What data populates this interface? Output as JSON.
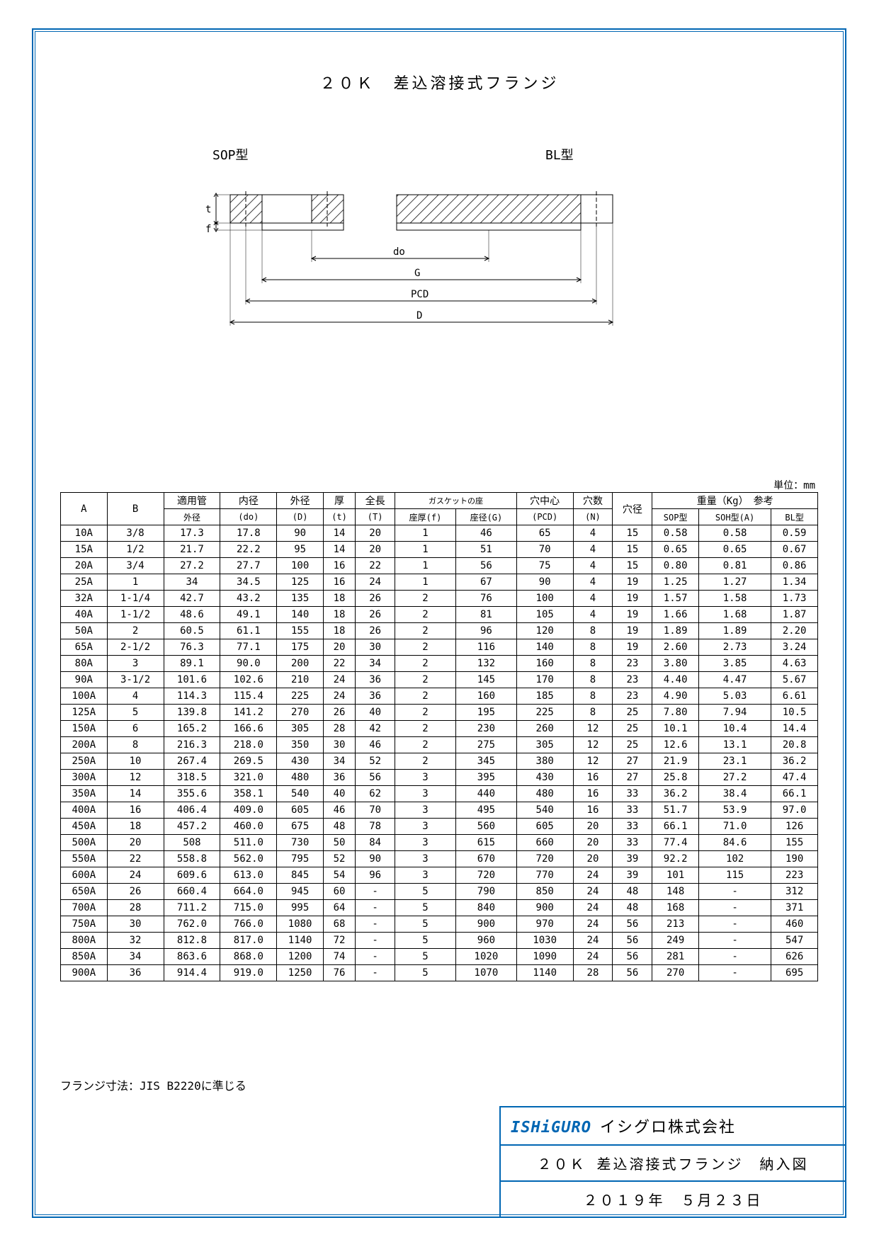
{
  "page": {
    "title": "２０Ｋ　差込溶接式フランジ",
    "sop_label": "SOP型",
    "bl_label": "BL型",
    "unit": "単位：mm",
    "footnote": "フランジ寸法：JIS B2220に準じる",
    "diagram_labels": {
      "t": "t",
      "f": "f",
      "do": "do",
      "G": "G",
      "PCD": "PCD",
      "D": "D"
    }
  },
  "table": {
    "header_row1": [
      "A",
      "B",
      "適用管",
      "内径",
      "外径",
      "厚",
      "全長",
      "ガスケットの座",
      "穴中心",
      "穴数",
      "穴径",
      "重量（Kg）　参考"
    ],
    "header_row2": [
      "",
      "",
      "外径",
      "(do)",
      "(D)",
      "(t)",
      "(T)",
      "座厚(f)",
      "座径(G)",
      "(PCD)",
      "(N)",
      "",
      "SOP型",
      "SOH型(A)",
      "BL型"
    ],
    "header_gasket_colspan": 2,
    "header_weight_colspan": 3,
    "rows": [
      [
        "10A",
        "3/8",
        "17.3",
        "17.8",
        "90",
        "14",
        "20",
        "1",
        "46",
        "65",
        "4",
        "15",
        "0.58",
        "0.58",
        "0.59"
      ],
      [
        "15A",
        "1/2",
        "21.7",
        "22.2",
        "95",
        "14",
        "20",
        "1",
        "51",
        "70",
        "4",
        "15",
        "0.65",
        "0.65",
        "0.67"
      ],
      [
        "20A",
        "3/4",
        "27.2",
        "27.7",
        "100",
        "16",
        "22",
        "1",
        "56",
        "75",
        "4",
        "15",
        "0.80",
        "0.81",
        "0.86"
      ],
      [
        "25A",
        "1",
        "34",
        "34.5",
        "125",
        "16",
        "24",
        "1",
        "67",
        "90",
        "4",
        "19",
        "1.25",
        "1.27",
        "1.34"
      ],
      [
        "32A",
        "1-1/4",
        "42.7",
        "43.2",
        "135",
        "18",
        "26",
        "2",
        "76",
        "100",
        "4",
        "19",
        "1.57",
        "1.58",
        "1.73"
      ],
      [
        "40A",
        "1-1/2",
        "48.6",
        "49.1",
        "140",
        "18",
        "26",
        "2",
        "81",
        "105",
        "4",
        "19",
        "1.66",
        "1.68",
        "1.87"
      ],
      [
        "50A",
        "2",
        "60.5",
        "61.1",
        "155",
        "18",
        "26",
        "2",
        "96",
        "120",
        "8",
        "19",
        "1.89",
        "1.89",
        "2.20"
      ],
      [
        "65A",
        "2-1/2",
        "76.3",
        "77.1",
        "175",
        "20",
        "30",
        "2",
        "116",
        "140",
        "8",
        "19",
        "2.60",
        "2.73",
        "3.24"
      ],
      [
        "80A",
        "3",
        "89.1",
        "90.0",
        "200",
        "22",
        "34",
        "2",
        "132",
        "160",
        "8",
        "23",
        "3.80",
        "3.85",
        "4.63"
      ],
      [
        "90A",
        "3-1/2",
        "101.6",
        "102.6",
        "210",
        "24",
        "36",
        "2",
        "145",
        "170",
        "8",
        "23",
        "4.40",
        "4.47",
        "5.67"
      ],
      [
        "100A",
        "4",
        "114.3",
        "115.4",
        "225",
        "24",
        "36",
        "2",
        "160",
        "185",
        "8",
        "23",
        "4.90",
        "5.03",
        "6.61"
      ],
      [
        "125A",
        "5",
        "139.8",
        "141.2",
        "270",
        "26",
        "40",
        "2",
        "195",
        "225",
        "8",
        "25",
        "7.80",
        "7.94",
        "10.5"
      ],
      [
        "150A",
        "6",
        "165.2",
        "166.6",
        "305",
        "28",
        "42",
        "2",
        "230",
        "260",
        "12",
        "25",
        "10.1",
        "10.4",
        "14.4"
      ],
      [
        "200A",
        "8",
        "216.3",
        "218.0",
        "350",
        "30",
        "46",
        "2",
        "275",
        "305",
        "12",
        "25",
        "12.6",
        "13.1",
        "20.8"
      ],
      [
        "250A",
        "10",
        "267.4",
        "269.5",
        "430",
        "34",
        "52",
        "2",
        "345",
        "380",
        "12",
        "27",
        "21.9",
        "23.1",
        "36.2"
      ],
      [
        "300A",
        "12",
        "318.5",
        "321.0",
        "480",
        "36",
        "56",
        "3",
        "395",
        "430",
        "16",
        "27",
        "25.8",
        "27.2",
        "47.4"
      ],
      [
        "350A",
        "14",
        "355.6",
        "358.1",
        "540",
        "40",
        "62",
        "3",
        "440",
        "480",
        "16",
        "33",
        "36.2",
        "38.4",
        "66.1"
      ],
      [
        "400A",
        "16",
        "406.4",
        "409.0",
        "605",
        "46",
        "70",
        "3",
        "495",
        "540",
        "16",
        "33",
        "51.7",
        "53.9",
        "97.0"
      ],
      [
        "450A",
        "18",
        "457.2",
        "460.0",
        "675",
        "48",
        "78",
        "3",
        "560",
        "605",
        "20",
        "33",
        "66.1",
        "71.0",
        "126"
      ],
      [
        "500A",
        "20",
        "508",
        "511.0",
        "730",
        "50",
        "84",
        "3",
        "615",
        "660",
        "20",
        "33",
        "77.4",
        "84.6",
        "155"
      ],
      [
        "550A",
        "22",
        "558.8",
        "562.0",
        "795",
        "52",
        "90",
        "3",
        "670",
        "720",
        "20",
        "39",
        "92.2",
        "102",
        "190"
      ],
      [
        "600A",
        "24",
        "609.6",
        "613.0",
        "845",
        "54",
        "96",
        "3",
        "720",
        "770",
        "24",
        "39",
        "101",
        "115",
        "223"
      ],
      [
        "650A",
        "26",
        "660.4",
        "664.0",
        "945",
        "60",
        "-",
        "5",
        "790",
        "850",
        "24",
        "48",
        "148",
        "-",
        "312"
      ],
      [
        "700A",
        "28",
        "711.2",
        "715.0",
        "995",
        "64",
        "-",
        "5",
        "840",
        "900",
        "24",
        "48",
        "168",
        "-",
        "371"
      ],
      [
        "750A",
        "30",
        "762.0",
        "766.0",
        "1080",
        "68",
        "-",
        "5",
        "900",
        "970",
        "24",
        "56",
        "213",
        "-",
        "460"
      ],
      [
        "800A",
        "32",
        "812.8",
        "817.0",
        "1140",
        "72",
        "-",
        "5",
        "960",
        "1030",
        "24",
        "56",
        "249",
        "-",
        "547"
      ],
      [
        "850A",
        "34",
        "863.6",
        "868.0",
        "1200",
        "74",
        "-",
        "5",
        "1020",
        "1090",
        "24",
        "56",
        "281",
        "-",
        "626"
      ],
      [
        "900A",
        "36",
        "914.4",
        "919.0",
        "1250",
        "76",
        "-",
        "5",
        "1070",
        "1140",
        "28",
        "56",
        "270",
        "-",
        "695"
      ]
    ]
  },
  "title_block": {
    "logo": "ISHiGURO",
    "company": "イシグロ株式会社",
    "drawing_title": "２０Ｋ 差込溶接式フランジ　納入図",
    "date": "２０１９年　５月２３日"
  },
  "style": {
    "border_color": "#0066b3",
    "logo_color": "#0066b3",
    "background": "#ffffff",
    "text_color": "#000000"
  }
}
